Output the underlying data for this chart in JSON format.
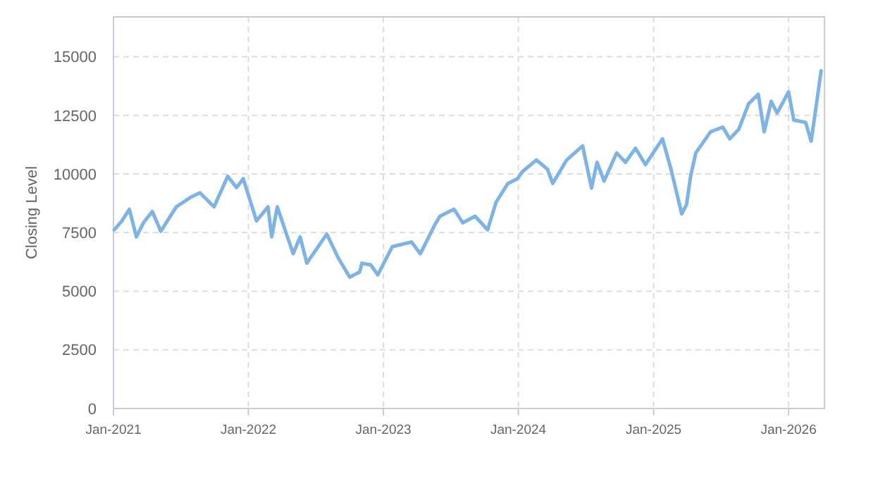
{
  "chart_data": {
    "type": "line",
    "ylabel": "Closing Level",
    "grid": true,
    "line_style": "solid",
    "marker": "none",
    "xlim": [
      "2021-01-01",
      "2026-04-08"
    ],
    "xticks": [
      {
        "value": "2021-01-01",
        "label": "Jan-2021"
      },
      {
        "value": "2022-01-01",
        "label": "Jan-2022"
      },
      {
        "value": "2023-01-01",
        "label": "Jan-2023"
      },
      {
        "value": "2024-01-01",
        "label": "Jan-2024"
      },
      {
        "value": "2025-01-01",
        "label": "Jan-2025"
      },
      {
        "value": "2026-01-01",
        "label": "Jan-2026"
      }
    ],
    "ylim": [
      0,
      16700
    ],
    "yticks": [
      0,
      2500,
      5000,
      7500,
      10000,
      12500,
      15000
    ],
    "x": [
      "2021-01-03",
      "2021-01-24",
      "2021-02-13",
      "2021-03-04",
      "2021-03-23",
      "2021-04-16",
      "2021-05-09",
      "2021-06-20",
      "2021-07-28",
      "2021-08-23",
      "2021-09-30",
      "2021-11-06",
      "2021-11-30",
      "2021-12-18",
      "2022-01-23",
      "2022-02-23",
      "2022-03-05",
      "2022-03-20",
      "2022-05-02",
      "2022-05-21",
      "2022-06-08",
      "2022-08-01",
      "2022-09-01",
      "2022-10-02",
      "2022-10-29",
      "2022-11-04",
      "2022-11-28",
      "2022-12-17",
      "2023-01-25",
      "2023-03-18",
      "2023-04-11",
      "2023-05-19",
      "2023-06-03",
      "2023-07-11",
      "2023-08-04",
      "2023-09-06",
      "2023-10-10",
      "2023-11-02",
      "2023-12-04",
      "2023-12-30",
      "2024-01-12",
      "2024-02-19",
      "2024-03-20",
      "2024-04-03",
      "2024-05-11",
      "2024-06-23",
      "2024-07-17",
      "2024-08-01",
      "2024-08-20",
      "2024-09-23",
      "2024-10-17",
      "2024-11-13",
      "2024-12-10",
      "2025-01-25",
      "2025-02-17",
      "2025-03-18",
      "2025-03-31",
      "2025-04-11",
      "2025-04-25",
      "2025-06-04",
      "2025-07-07",
      "2025-07-26",
      "2025-08-19",
      "2025-09-15",
      "2025-10-11",
      "2025-10-27",
      "2025-11-15",
      "2025-12-01",
      "2026-01-01",
      "2026-01-15",
      "2026-02-16",
      "2026-03-03",
      "2026-03-13",
      "2026-03-30"
    ],
    "series": [
      {
        "color": "#7eb3e6",
        "values": [
          7620,
          8000,
          8500,
          7320,
          7920,
          8400,
          7560,
          8600,
          9000,
          9200,
          8600,
          9900,
          9420,
          9800,
          8000,
          8600,
          7320,
          8600,
          6600,
          7320,
          6200,
          7440,
          6420,
          5600,
          5820,
          6200,
          6120,
          5700,
          6900,
          7100,
          6600,
          7800,
          8200,
          8500,
          7920,
          8200,
          7620,
          8800,
          9600,
          9800,
          10100,
          10600,
          10200,
          9600,
          10600,
          11200,
          9400,
          10500,
          9700,
          10900,
          10500,
          11100,
          10400,
          11500,
          10200,
          8300,
          8700,
          9900,
          10900,
          11800,
          12000,
          11500,
          11900,
          13000,
          13400,
          11800,
          13100,
          12600,
          13500,
          12300,
          12200,
          11400,
          12500,
          14400
        ]
      }
    ]
  }
}
